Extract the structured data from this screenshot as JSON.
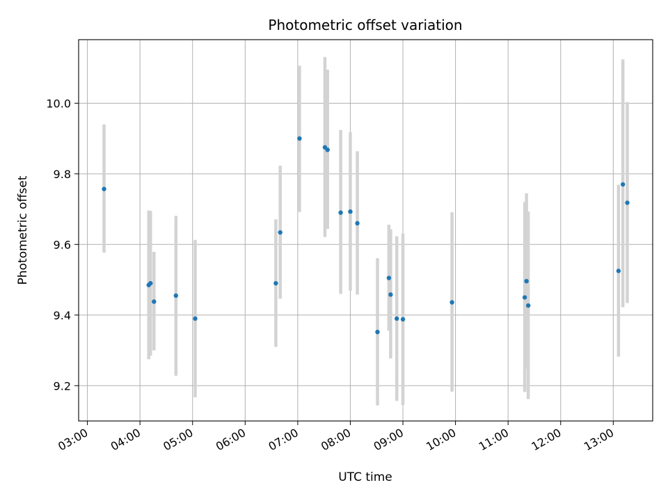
{
  "chart_data": {
    "type": "scatter",
    "title": "Photometric offset variation",
    "xlabel": "UTC time",
    "ylabel": "Photometric offset",
    "xlim": [
      "02:50",
      "13:45"
    ],
    "ylim": [
      9.1,
      10.18
    ],
    "x_ticks": [
      "03:00",
      "04:00",
      "05:00",
      "06:00",
      "07:00",
      "08:00",
      "09:00",
      "10:00",
      "11:00",
      "12:00",
      "13:00"
    ],
    "y_ticks": [
      "9.2",
      "9.4",
      "9.6",
      "9.8",
      "10.0"
    ],
    "grid": true,
    "point_color": "#1f77b4",
    "errorbar_color": "#d3d3d3",
    "points": [
      {
        "time": "03:19",
        "offset": 9.757,
        "low": 9.577,
        "high": 9.94
      },
      {
        "time": "04:10",
        "offset": 9.485,
        "low": 9.275,
        "high": 9.696
      },
      {
        "time": "04:12",
        "offset": 9.49,
        "low": 9.285,
        "high": 9.695
      },
      {
        "time": "04:16",
        "offset": 9.438,
        "low": 9.3,
        "high": 9.579
      },
      {
        "time": "04:41",
        "offset": 9.455,
        "low": 9.228,
        "high": 9.681
      },
      {
        "time": "05:03",
        "offset": 9.39,
        "low": 9.167,
        "high": 9.613
      },
      {
        "time": "06:35",
        "offset": 9.49,
        "low": 9.31,
        "high": 9.671
      },
      {
        "time": "06:40",
        "offset": 9.634,
        "low": 9.446,
        "high": 9.823
      },
      {
        "time": "07:02",
        "offset": 9.9,
        "low": 9.692,
        "high": 10.106
      },
      {
        "time": "07:31",
        "offset": 9.875,
        "low": 9.621,
        "high": 10.131
      },
      {
        "time": "07:34",
        "offset": 9.868,
        "low": 9.644,
        "high": 10.095
      },
      {
        "time": "07:49",
        "offset": 9.69,
        "low": 9.46,
        "high": 9.924
      },
      {
        "time": "08:00",
        "offset": 9.693,
        "low": 9.469,
        "high": 9.918
      },
      {
        "time": "08:08",
        "offset": 9.66,
        "low": 9.458,
        "high": 9.864
      },
      {
        "time": "08:31",
        "offset": 9.352,
        "low": 9.144,
        "high": 9.561
      },
      {
        "time": "08:44",
        "offset": 9.505,
        "low": 9.356,
        "high": 9.656
      },
      {
        "time": "08:46",
        "offset": 9.458,
        "low": 9.277,
        "high": 9.643
      },
      {
        "time": "08:53",
        "offset": 9.39,
        "low": 9.157,
        "high": 9.623
      },
      {
        "time": "09:00",
        "offset": 9.388,
        "low": 9.145,
        "high": 9.631
      },
      {
        "time": "09:56",
        "offset": 9.436,
        "low": 9.183,
        "high": 9.691
      },
      {
        "time": "11:19",
        "offset": 9.45,
        "low": 9.182,
        "high": 9.72
      },
      {
        "time": "11:21",
        "offset": 9.496,
        "low": 9.248,
        "high": 9.745
      },
      {
        "time": "11:23",
        "offset": 9.427,
        "low": 9.162,
        "high": 9.693
      },
      {
        "time": "13:06",
        "offset": 9.525,
        "low": 9.282,
        "high": 9.769
      },
      {
        "time": "13:11",
        "offset": 9.77,
        "low": 9.422,
        "high": 10.124
      },
      {
        "time": "13:16",
        "offset": 9.718,
        "low": 9.434,
        "high": 10.003
      }
    ]
  }
}
